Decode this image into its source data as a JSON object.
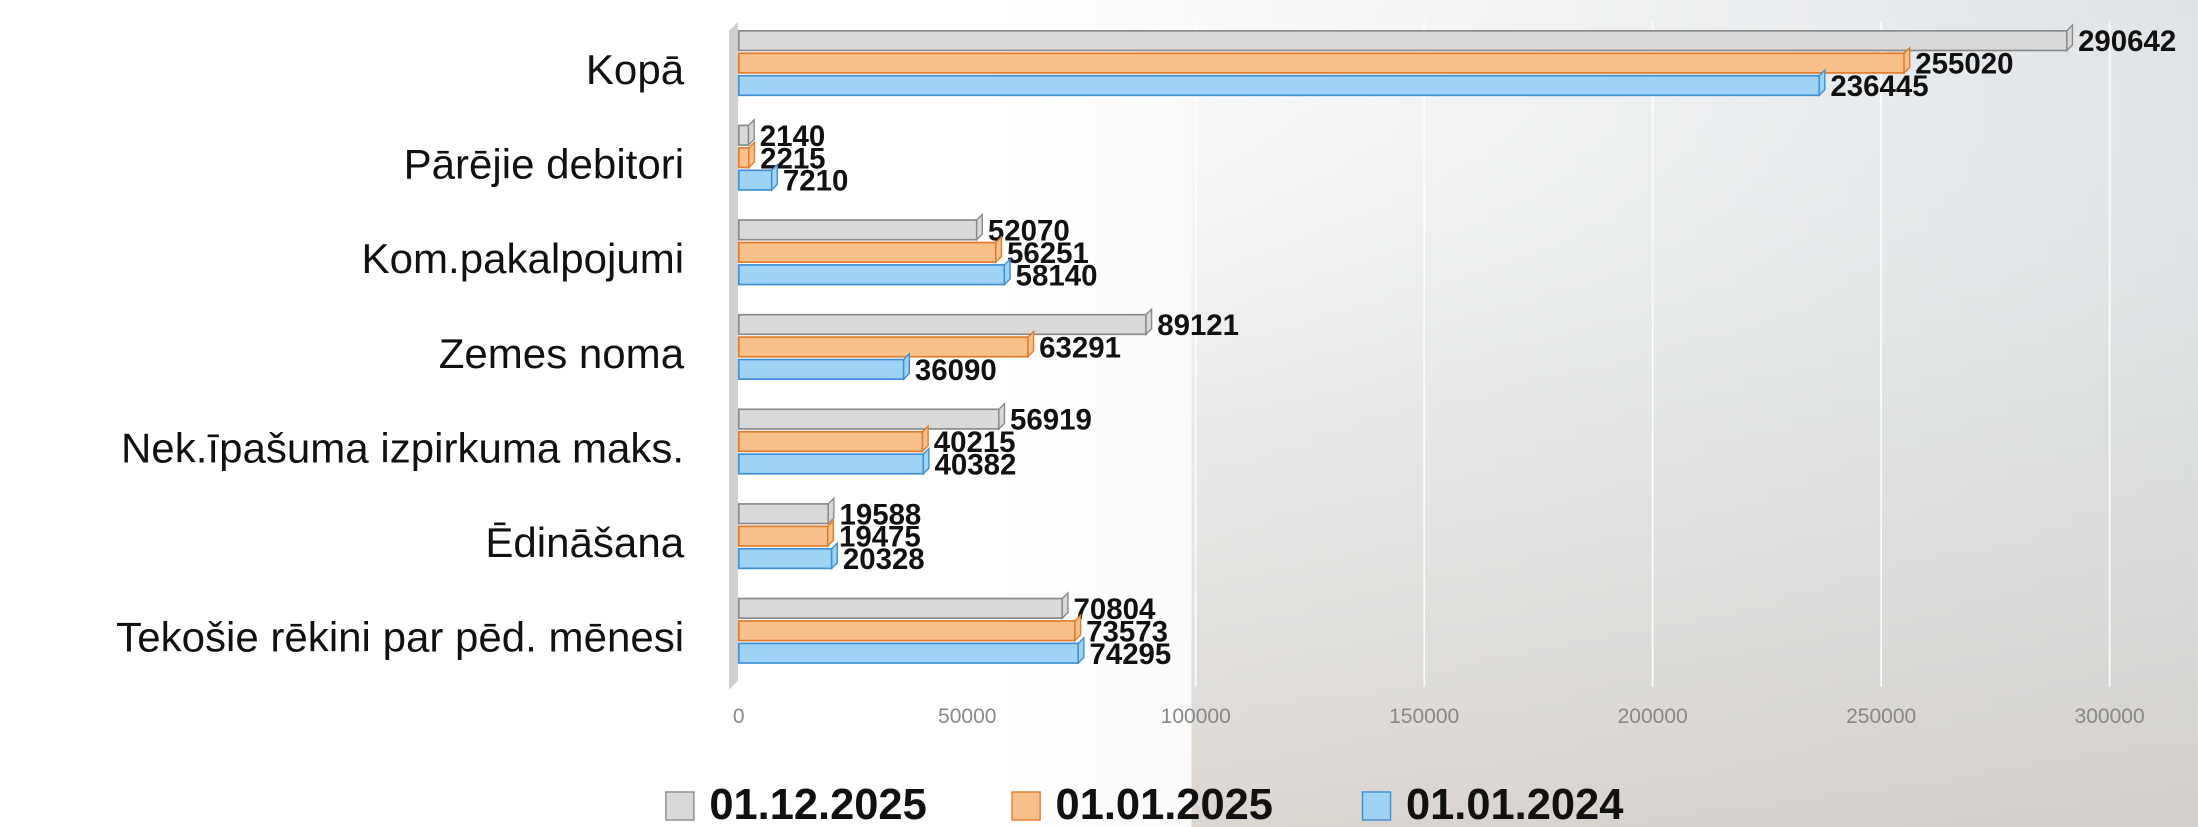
{
  "chart_data": {
    "type": "bar",
    "orientation": "horizontal",
    "categories": [
      "Kopā",
      "Pārējie debitori",
      "Kom.pakalpojumi",
      "Zemes noma",
      "Nek.īpašuma izpirkuma maks.",
      "Ēdināšana",
      "Tekošie rēkini  par pēd. mēnesi"
    ],
    "series": [
      {
        "name": "01.12.2025",
        "color": "#d9d9d9",
        "values": [
          290642,
          2140,
          52070,
          89121,
          56919,
          19588,
          70804
        ]
      },
      {
        "name": "01.01.2025",
        "color": "#f8c08a",
        "values": [
          255020,
          2215,
          56251,
          63291,
          40215,
          19475,
          73573
        ]
      },
      {
        "name": "01.01.2024",
        "color": "#9fd3f5",
        "values": [
          236445,
          7210,
          58140,
          36090,
          40382,
          20328,
          74295
        ]
      }
    ],
    "xlim": [
      0,
      300000
    ],
    "xticks": [
      0,
      50000,
      100000,
      150000,
      200000,
      250000,
      300000
    ],
    "grid": true,
    "legend": "bottom"
  }
}
